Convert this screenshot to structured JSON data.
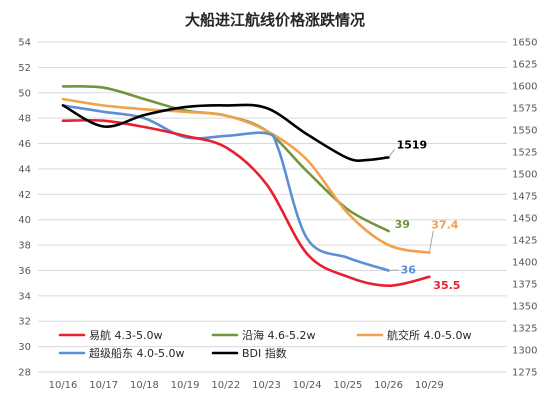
{
  "chart_data": {
    "type": "line",
    "title": "大船进江航线价格涨跌情况",
    "categories": [
      "10/16",
      "10/17",
      "10/18",
      "10/19",
      "10/22",
      "10/23",
      "10/24",
      "10/25",
      "10/26",
      "10/29"
    ],
    "y_left": {
      "min": 28,
      "max": 54,
      "step": 2,
      "ticks": [
        "28",
        "30",
        "32",
        "34",
        "36",
        "38",
        "40",
        "42",
        "44",
        "46",
        "48",
        "50",
        "52",
        "54"
      ]
    },
    "y_right": {
      "min": 1275,
      "max": 1650,
      "step": 25,
      "ticks": [
        "1275",
        "1300",
        "1325",
        "1350",
        "1375",
        "1400",
        "1425",
        "1450",
        "1475",
        "1500",
        "1525",
        "1550",
        "1575",
        "1600",
        "1625",
        "1650"
      ]
    },
    "series": [
      {
        "name": "易航 4.3-5.0w",
        "axis": "left",
        "color": "#e8202e",
        "x": [
          0,
          1,
          2,
          3,
          4,
          5,
          6,
          7,
          8,
          9
        ],
        "y": [
          47.8,
          47.8,
          47.3,
          46.6,
          45.7,
          42.8,
          37.3,
          35.5,
          34.8,
          35.5
        ],
        "end_label": "35.5"
      },
      {
        "name": "沿海 4.6-5.2w",
        "axis": "left",
        "color": "#70963b",
        "x": [
          0,
          1,
          2,
          3,
          4,
          5,
          6,
          7,
          8
        ],
        "y": [
          50.5,
          50.4,
          49.5,
          48.6,
          48.2,
          47.0,
          43.8,
          40.8,
          39.1
        ],
        "end_label": "39"
      },
      {
        "name": "航交所 4.0-5.0w",
        "axis": "left",
        "color": "#f2a14b",
        "x": [
          0,
          1,
          2,
          3,
          4,
          5,
          6,
          7,
          8,
          9
        ],
        "y": [
          49.5,
          49.0,
          48.7,
          48.5,
          48.2,
          47.0,
          44.7,
          40.5,
          38.0,
          37.4
        ],
        "end_label": "37.4"
      },
      {
        "name": "超级船东 4.0-5.0w",
        "axis": "left",
        "color": "#5b8fd6",
        "x": [
          0,
          1,
          2,
          3,
          4,
          5,
          5.3,
          6,
          7,
          8
        ],
        "y": [
          49.0,
          48.5,
          48.0,
          46.5,
          46.6,
          46.8,
          45.5,
          38.5,
          37.0,
          36.0
        ],
        "end_label": "36"
      },
      {
        "name": "BDI 指数",
        "axis": "right",
        "color": "#000000",
        "x": [
          0,
          1,
          2,
          3,
          4,
          5,
          6,
          7,
          7.5,
          8
        ],
        "y": [
          1578,
          1554,
          1567,
          1576,
          1578,
          1575,
          1545,
          1518,
          1516,
          1519
        ],
        "end_label": "1519"
      }
    ]
  }
}
